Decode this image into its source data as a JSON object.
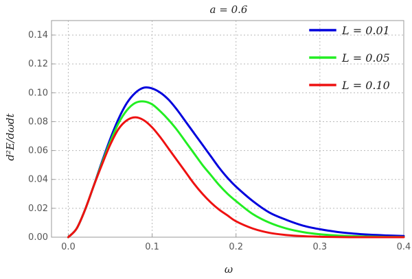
{
  "chart_data": {
    "type": "line",
    "title": "a = 0.6",
    "xlabel": "ω",
    "ylabel": "d²E/dωdt",
    "xlim": [
      -0.02,
      0.4
    ],
    "ylim": [
      0,
      0.15
    ],
    "xticks": [
      0.0,
      0.1,
      0.2,
      0.3,
      0.4
    ],
    "xtick_labels": [
      "0.0",
      "0.1",
      "0.2",
      "0.3",
      "0.4"
    ],
    "yticks": [
      0.0,
      0.02,
      0.04,
      0.06,
      0.08,
      0.1,
      0.12,
      0.14
    ],
    "ytick_labels": [
      "0.00",
      "0.02",
      "0.04",
      "0.06",
      "0.08",
      "0.10",
      "0.12",
      "0.14"
    ],
    "grid": true,
    "legend_position": "top-right",
    "series": [
      {
        "name": "L = 0.01",
        "color": "#0000dd",
        "x": [
          0.0,
          0.01,
          0.02,
          0.03,
          0.04,
          0.05,
          0.06,
          0.07,
          0.08,
          0.09,
          0.1,
          0.11,
          0.12,
          0.13,
          0.14,
          0.15,
          0.16,
          0.17,
          0.18,
          0.19,
          0.2,
          0.22,
          0.24,
          0.26,
          0.28,
          0.3,
          0.32,
          0.34,
          0.36,
          0.38,
          0.4
        ],
        "y": [
          0.0,
          0.006,
          0.019,
          0.035,
          0.052,
          0.068,
          0.082,
          0.093,
          0.1,
          0.1035,
          0.103,
          0.1,
          0.095,
          0.088,
          0.08,
          0.072,
          0.064,
          0.056,
          0.048,
          0.041,
          0.035,
          0.025,
          0.017,
          0.012,
          0.008,
          0.0055,
          0.0037,
          0.0025,
          0.0017,
          0.0012,
          0.0008
        ]
      },
      {
        "name": "L = 0.05",
        "color": "#22ee22",
        "x": [
          0.0,
          0.01,
          0.02,
          0.03,
          0.04,
          0.05,
          0.06,
          0.07,
          0.08,
          0.09,
          0.1,
          0.11,
          0.12,
          0.13,
          0.14,
          0.15,
          0.16,
          0.17,
          0.18,
          0.19,
          0.2,
          0.22,
          0.24,
          0.26,
          0.28,
          0.3,
          0.32,
          0.34,
          0.36,
          0.38,
          0.4
        ],
        "y": [
          0.0,
          0.006,
          0.019,
          0.035,
          0.051,
          0.066,
          0.079,
          0.088,
          0.093,
          0.094,
          0.092,
          0.087,
          0.081,
          0.074,
          0.066,
          0.058,
          0.05,
          0.043,
          0.036,
          0.03,
          0.025,
          0.016,
          0.01,
          0.006,
          0.0035,
          0.002,
          0.0012,
          0.0007,
          0.0004,
          0.0002,
          0.0001
        ]
      },
      {
        "name": "L = 0.10",
        "color": "#ee1111",
        "x": [
          0.0,
          0.01,
          0.02,
          0.03,
          0.04,
          0.05,
          0.06,
          0.07,
          0.08,
          0.09,
          0.1,
          0.11,
          0.12,
          0.13,
          0.14,
          0.15,
          0.16,
          0.17,
          0.18,
          0.19,
          0.2,
          0.22,
          0.24,
          0.26,
          0.28,
          0.3,
          0.32,
          0.34,
          0.36,
          0.38,
          0.4
        ],
        "y": [
          0.0,
          0.006,
          0.019,
          0.035,
          0.05,
          0.064,
          0.075,
          0.081,
          0.083,
          0.081,
          0.076,
          0.069,
          0.061,
          0.053,
          0.045,
          0.037,
          0.03,
          0.024,
          0.019,
          0.015,
          0.011,
          0.006,
          0.003,
          0.0015,
          0.0007,
          0.0003,
          0.0001,
          0.0,
          0.0,
          0.0,
          0.0
        ]
      }
    ]
  }
}
